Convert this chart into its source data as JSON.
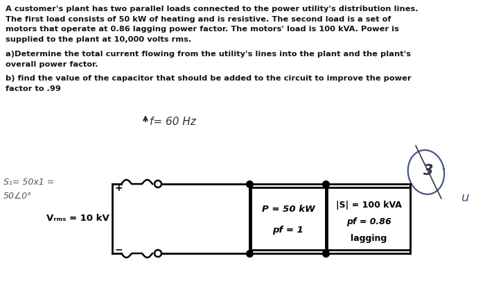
{
  "bg_color": "#ffffff",
  "text_color": "#111111",
  "paragraph1_lines": [
    "A customer's plant has two parallel loads connected to the power utility's distribution lines.",
    "The first load consists of 50 kW of heating and is resistive. The second load is a set of",
    "motors that operate at 0.86 lagging power factor. The motors' load is 100 kVA. Power is",
    "supplied to the plant at 10,000 volts rms."
  ],
  "para_a_lines": [
    "a)Determine the total current flowing from the utility's lines into the plant and the plant's",
    "overall power factor."
  ],
  "para_b_lines": [
    "b) find the value of the capacitor that should be added to the circuit to improve the power",
    "factor to .99"
  ],
  "freq_label": "f= 60 Hz",
  "s1_label": "S₁= 50x1 =",
  "s1_angle": "50∠0°",
  "vrms_label": "Vᵣₘₛ = 10 kV",
  "box1_line1": "P = 50 kW",
  "box1_line2": "pf = 1",
  "box2_line1": "|S| = 100 kVA",
  "box2_line2": "pf = 0.86",
  "box2_line3": "lagging",
  "handwritten_u": "u",
  "plus_sign": "+",
  "minus_sign": "−",
  "font_size_body": 8.2,
  "font_size_circuit": 9.5
}
